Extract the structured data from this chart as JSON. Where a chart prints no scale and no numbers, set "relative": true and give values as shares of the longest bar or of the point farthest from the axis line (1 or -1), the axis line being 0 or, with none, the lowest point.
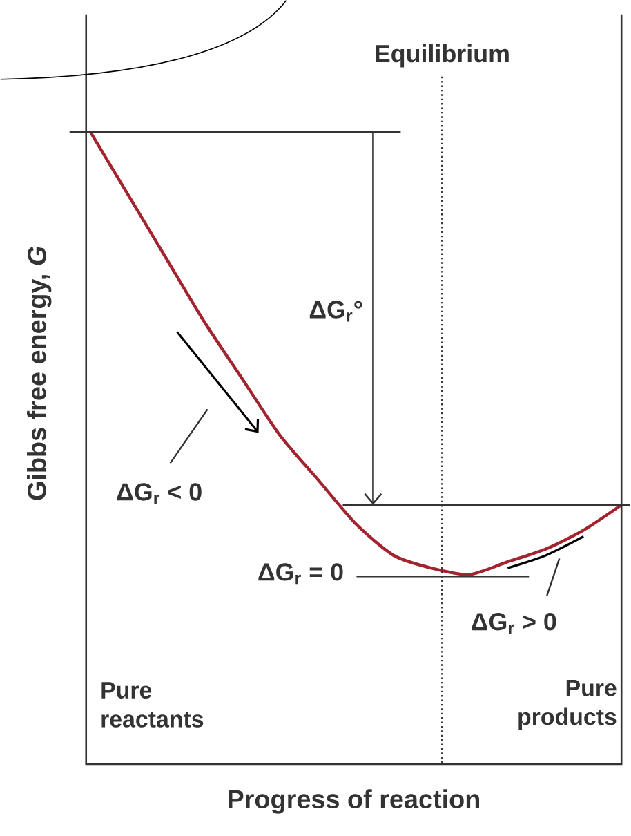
{
  "chart_data": {
    "type": "line",
    "relative": true,
    "xlabel": "Progress of reaction",
    "ylabel": "Gibbs free energy, *G*",
    "categories": [
      null,
      null,
      null,
      null,
      null,
      null,
      null,
      null,
      null,
      null,
      null,
      null,
      null,
      null,
      null
    ],
    "series": [
      {
        "color": "#a3232f",
        "values": [
          1,
          0.9,
          0.8,
          0.7,
          0.61,
          0.52,
          0.45,
          0.38,
          0.33,
          0.31,
          0.3,
          0.32,
          0.34,
          0.37,
          0.41
        ]
      },
      {
        "color": "#000000",
        "values": [
          null,
          null,
          null,
          null,
          null,
          null,
          null,
          null,
          null,
          null,
          null,
          0.31,
          0.33,
          0.36,
          null
        ]
      }
    ],
    "ref_lines": [
      {
        "axis": "y",
        "value": 1
      },
      {
        "axis": "y",
        "value": 0.41
      }
    ],
    "annotations": [
      "ΔG$_{r}$°",
      "ΔG$_{r}$ < 0",
      "ΔG$_{r}$ = 0",
      "ΔG$_{r}$ > 0",
      "Pure reactants",
      "Pure products",
      "Equilibrium"
    ]
  }
}
